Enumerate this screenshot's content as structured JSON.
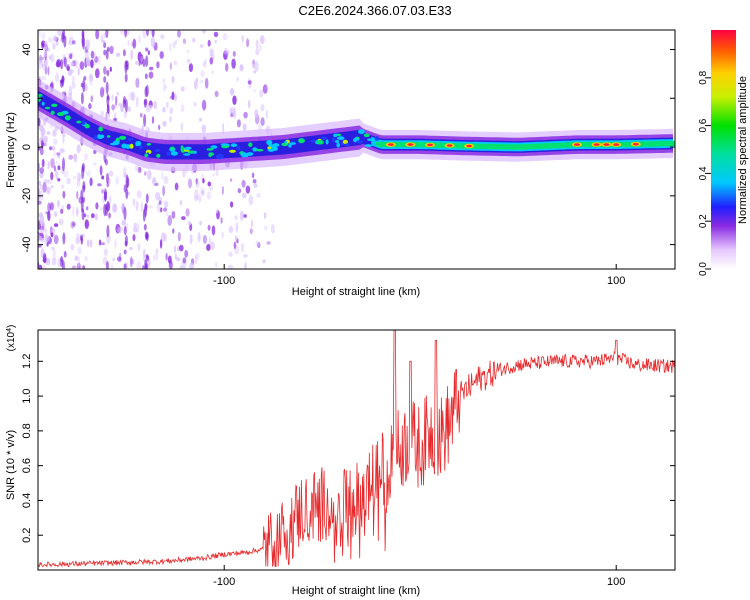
{
  "figure_title": "C2E6.2024.366.07.03.E33",
  "chart_data": [
    {
      "type": "heatmap",
      "xlabel": "Height of straight line (km)",
      "ylabel": "Frequency (Hz)",
      "xlim": [
        -195,
        130
      ],
      "ylim": [
        -50,
        48
      ],
      "xticks": [
        -100,
        100
      ],
      "yticks": [
        -40,
        -20,
        0,
        20,
        40
      ],
      "colorbar": {
        "label": "Normalized spectral amplitude",
        "range": [
          0,
          1
        ],
        "ticks": [
          0.0,
          0.2,
          0.4,
          0.6,
          0.8
        ]
      },
      "ridge": {
        "x": [
          -195,
          -180,
          -170,
          -160,
          -150,
          -140,
          -130,
          -110,
          -90,
          -70,
          -50,
          -30,
          -20,
          0,
          20,
          50,
          80,
          100,
          130
        ],
        "freq": [
          20,
          13,
          8,
          4,
          2,
          -1,
          -2,
          -2,
          -1,
          0,
          2,
          4,
          1,
          1,
          0.5,
          0,
          1,
          1,
          1.5
        ]
      },
      "hotspots_x": [
        -15,
        -5,
        5,
        15,
        25,
        80,
        90,
        95,
        100,
        110
      ]
    },
    {
      "type": "line",
      "xlabel": "Height of straight line (km)",
      "ylabel": "SNR (10 * v/v)",
      "scale_label": "(x10",
      "scale_exp": "4",
      "scale_close": ")",
      "xlim": [
        -195,
        130
      ],
      "ylim": [
        0,
        1.38
      ],
      "xticks": [
        -100,
        100
      ],
      "yticks": [
        0.2,
        0.4,
        0.6,
        0.8,
        1.0,
        1.2
      ],
      "series": [
        {
          "name": "SNR",
          "color": "#e8282a",
          "x": [
            -195,
            -160,
            -130,
            -110,
            -100,
            -90,
            -80,
            -70,
            -60,
            -50,
            -40,
            -30,
            -25,
            -20,
            -15,
            -10,
            -5,
            0,
            5,
            10,
            15,
            20,
            25,
            30,
            35,
            40,
            50,
            70,
            90,
            100,
            105,
            110,
            130
          ],
          "y": [
            0.03,
            0.04,
            0.05,
            0.07,
            0.09,
            0.1,
            0.12,
            0.2,
            0.35,
            0.38,
            0.35,
            0.42,
            0.5,
            0.55,
            0.65,
            0.7,
            0.75,
            0.7,
            0.8,
            0.75,
            0.85,
            1.0,
            1.05,
            1.1,
            1.12,
            1.15,
            1.18,
            1.2,
            1.2,
            1.22,
            1.2,
            1.18,
            1.17
          ]
        }
      ],
      "spikes": [
        {
          "x": -13,
          "y": 1.38
        },
        {
          "x": -5,
          "y": 1.2
        },
        {
          "x": 8,
          "y": 1.32
        },
        {
          "x": 100,
          "y": 1.32
        }
      ]
    }
  ]
}
